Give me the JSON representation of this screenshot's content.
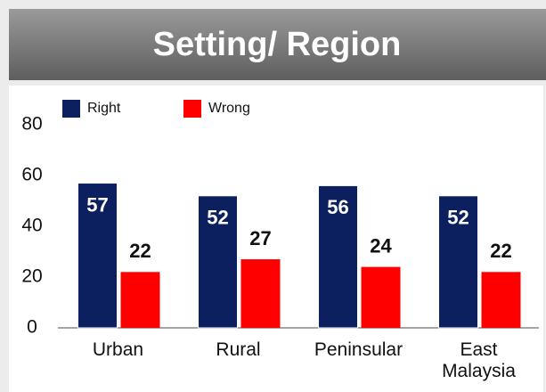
{
  "chart_data": {
    "type": "bar",
    "title": "Setting/ Region",
    "categories": [
      "Urban",
      "Rural",
      "Peninsular",
      "East Malaysia"
    ],
    "series": [
      {
        "name": "Right",
        "color": "#0c1f5e",
        "values": [
          57,
          52,
          56,
          52
        ]
      },
      {
        "name": "Wrong",
        "color": "#ff0000",
        "values": [
          22,
          27,
          24,
          22
        ]
      }
    ],
    "ylim": [
      0,
      80
    ],
    "yticks": [
      0,
      20,
      40,
      60,
      80
    ],
    "grid": false,
    "legend": "top-left"
  }
}
